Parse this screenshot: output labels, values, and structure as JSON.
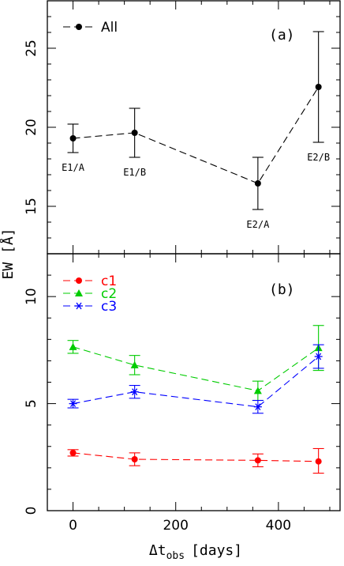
{
  "chart_data": [
    {
      "type": "line",
      "panel_label": "(a)",
      "ylabel": "EW [Å]",
      "ylim": [
        12,
        28
      ],
      "yticks": [
        "15",
        "20",
        "25"
      ],
      "legend": {
        "placement": "top-left",
        "entries": [
          "All"
        ]
      },
      "series": [
        {
          "name": "All",
          "color": "#000000",
          "marker": "circle",
          "x": [
            0,
            120,
            360,
            478
          ],
          "y": [
            19.3,
            19.65,
            16.45,
            22.55
          ],
          "err_low": [
            0.9,
            1.55,
            1.65,
            3.5
          ],
          "err_high": [
            0.9,
            1.55,
            1.65,
            3.5
          ],
          "point_labels": [
            "E1/A",
            "E1/B",
            "E2/A",
            "E2/B"
          ]
        }
      ]
    },
    {
      "type": "line",
      "panel_label": "(b)",
      "ylim": [
        0,
        12
      ],
      "yticks": [
        "0",
        "5",
        "10"
      ],
      "xlabel": "Δt",
      "xlabel_sub": "obs",
      "xlabel_unit": "[days]",
      "xlim": [
        -50,
        520
      ],
      "xticks": [
        "0",
        "200",
        "400"
      ],
      "legend": {
        "placement": "top-left",
        "entries": [
          "c1",
          "c2",
          "c3"
        ]
      },
      "series": [
        {
          "name": "c1",
          "color": "#ff0000",
          "marker": "circle",
          "x": [
            0,
            120,
            360,
            478
          ],
          "y": [
            2.7,
            2.4,
            2.35,
            2.3
          ],
          "err_low": [
            0.15,
            0.3,
            0.3,
            0.55
          ],
          "err_high": [
            0.15,
            0.3,
            0.3,
            0.6
          ]
        },
        {
          "name": "c2",
          "color": "#00cc00",
          "marker": "triangle",
          "x": [
            0,
            120,
            360,
            478
          ],
          "y": [
            7.65,
            6.8,
            5.6,
            7.6
          ],
          "err_low": [
            0.3,
            0.45,
            0.45,
            1.05
          ],
          "err_high": [
            0.3,
            0.45,
            0.45,
            1.05
          ]
        },
        {
          "name": "c3",
          "color": "#0000ff",
          "marker": "asterisk",
          "x": [
            0,
            120,
            360,
            478
          ],
          "y": [
            5.0,
            5.55,
            4.85,
            7.2
          ],
          "err_low": [
            0.2,
            0.3,
            0.3,
            0.55
          ],
          "err_high": [
            0.2,
            0.3,
            0.3,
            0.55
          ]
        }
      ]
    }
  ]
}
